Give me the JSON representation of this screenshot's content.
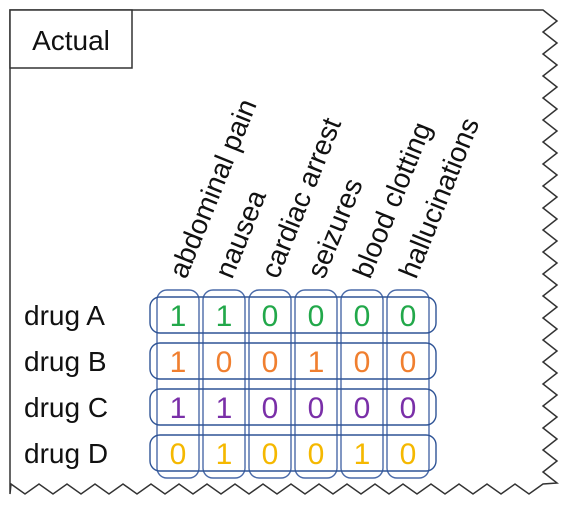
{
  "title": "Actual",
  "colors": {
    "border": "#333333",
    "text": "#111111",
    "column_box": "#4a6aa8",
    "row_box": "#2f5496",
    "row_colors": [
      "#22a84a",
      "#f07f2f",
      "#7a2fa8",
      "#f5b800"
    ]
  },
  "columns": [
    "abdominal pain",
    "nausea",
    "cardiac arrest",
    "seizures",
    "blood clotting",
    "hallucinations"
  ],
  "rows": [
    {
      "label": "drug A",
      "values": [
        "1",
        "1",
        "0",
        "0",
        "0",
        "0"
      ]
    },
    {
      "label": "drug B",
      "values": [
        "1",
        "0",
        "0",
        "1",
        "0",
        "0"
      ]
    },
    {
      "label": "drug C",
      "values": [
        "1",
        "1",
        "0",
        "0",
        "0",
        "0"
      ]
    },
    {
      "label": "drug D",
      "values": [
        "0",
        "1",
        "0",
        "0",
        "1",
        "0"
      ]
    }
  ]
}
